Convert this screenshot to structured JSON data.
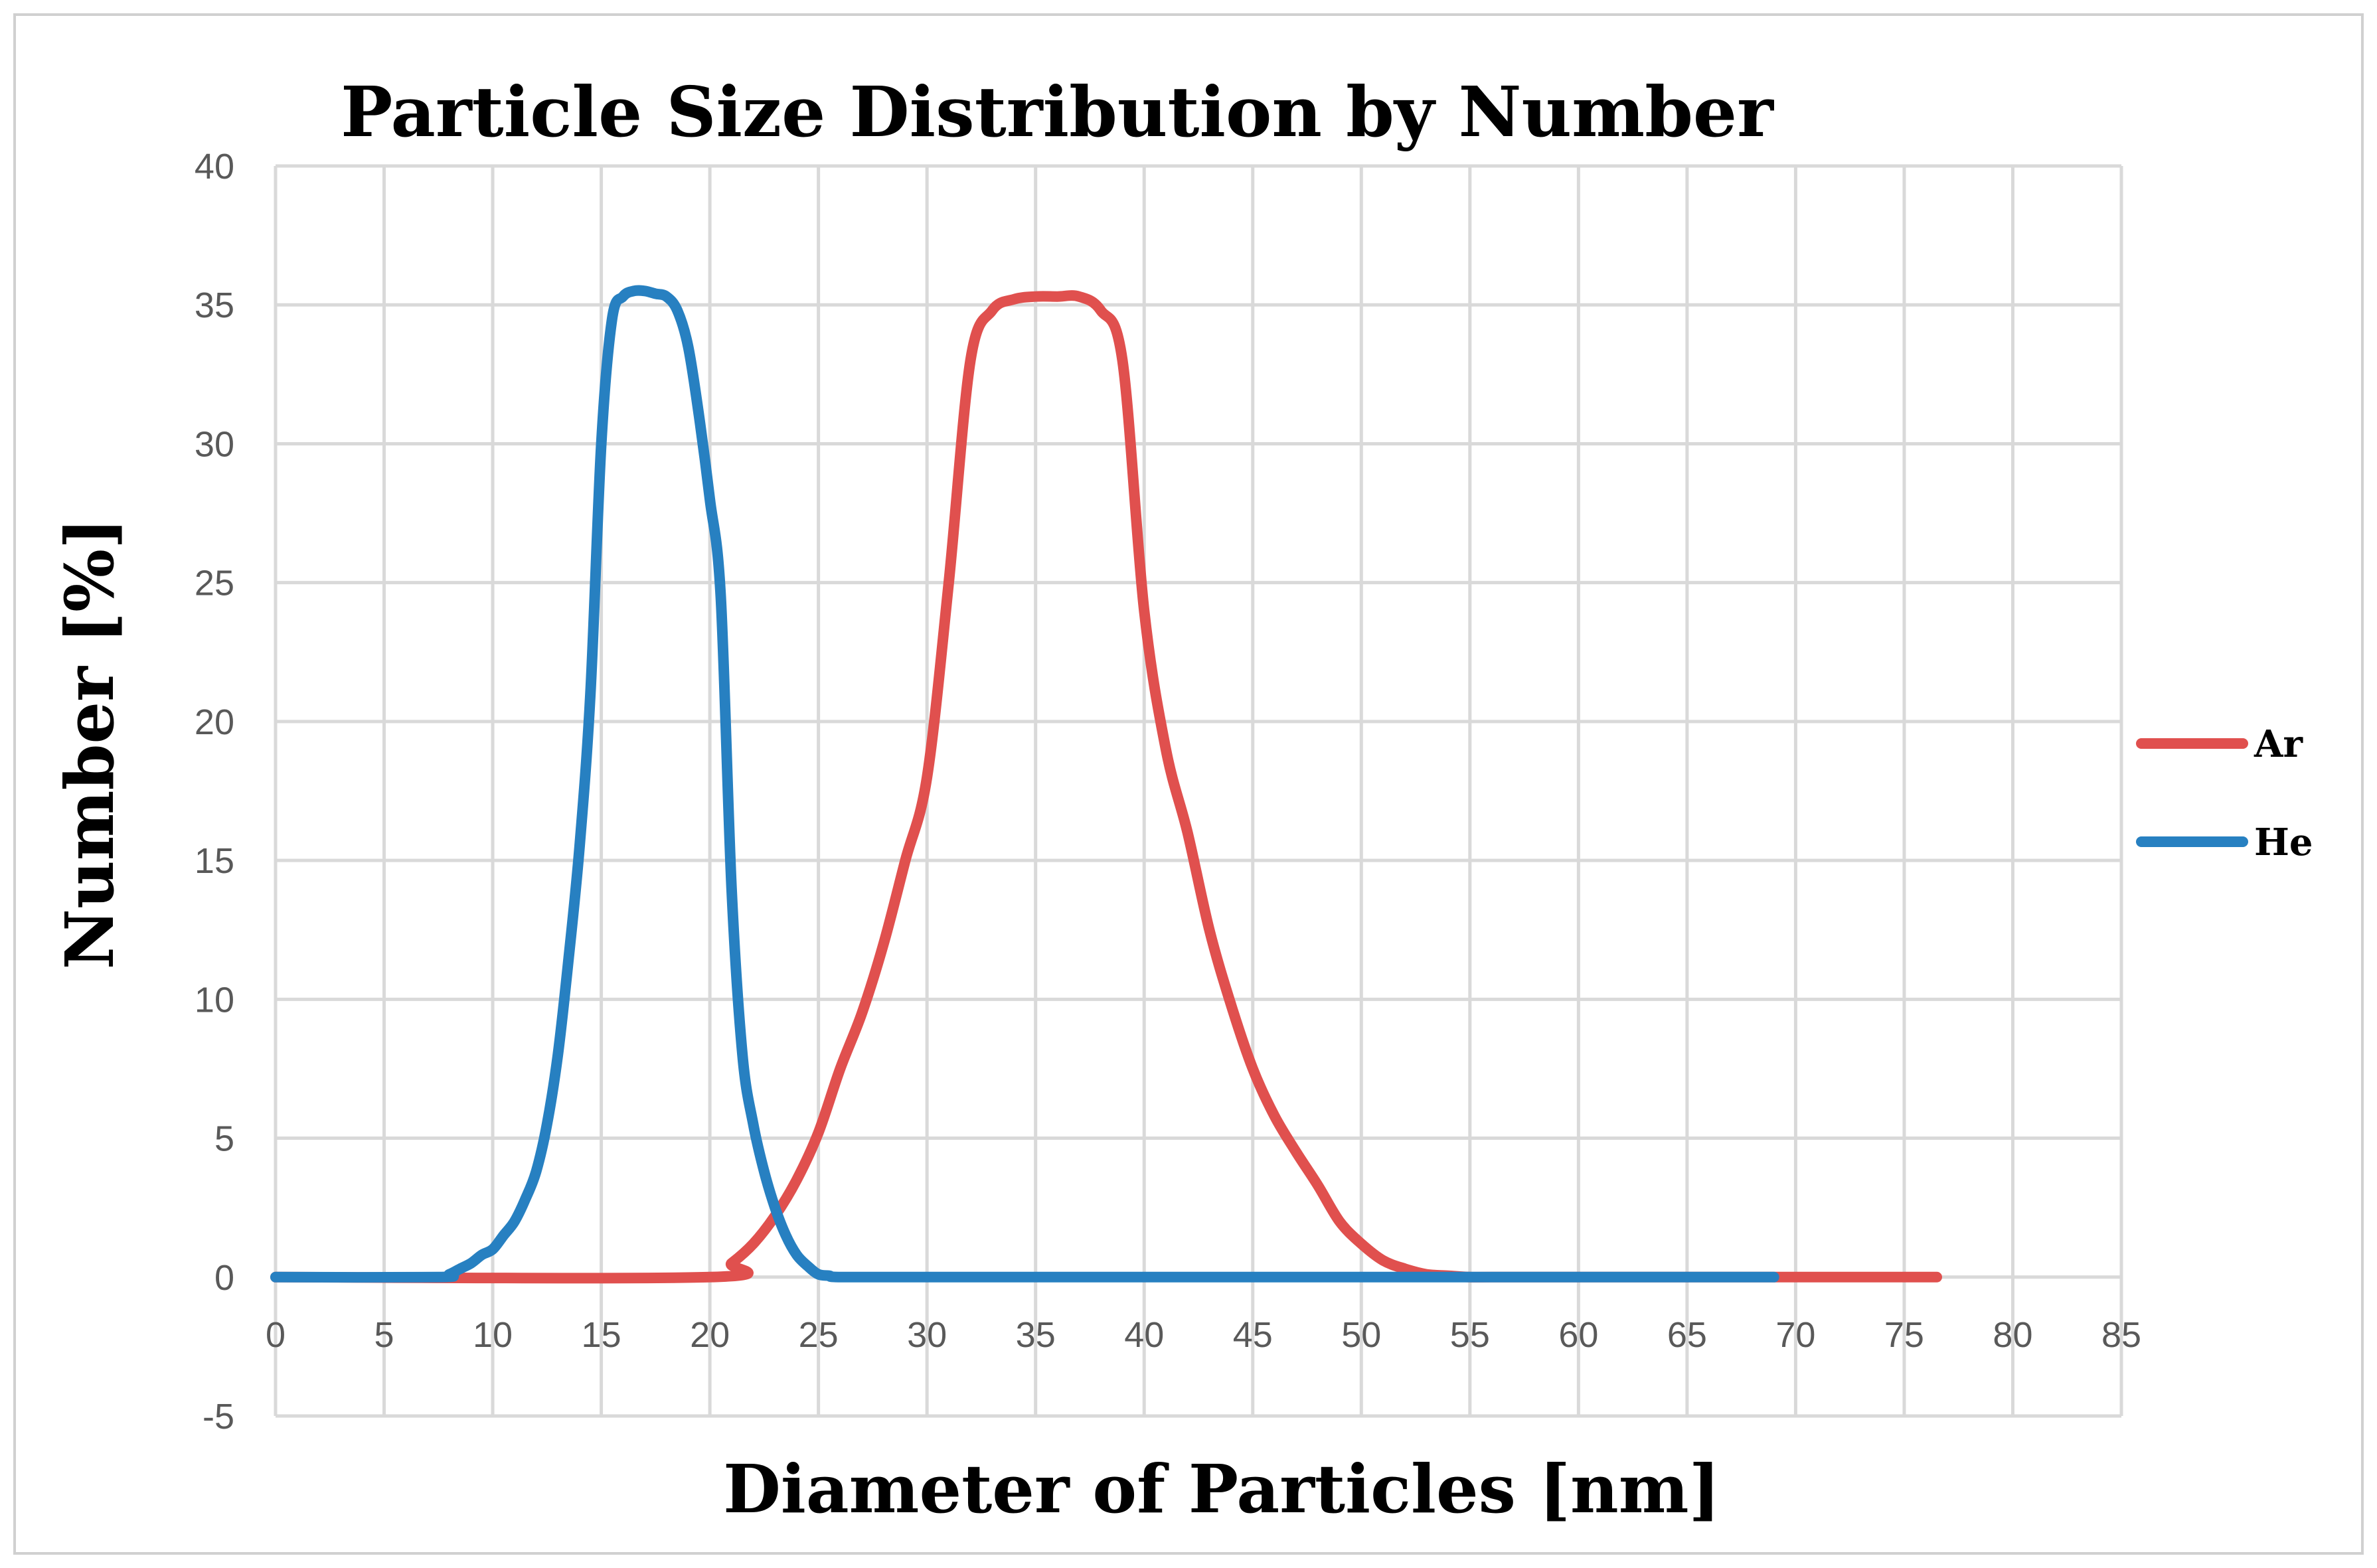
{
  "chart_data": {
    "type": "line",
    "title": "Particle Size Distribution by Number",
    "xlabel": "Diameter of Particles [nm]",
    "ylabel": "Number [%]",
    "xlim": [
      0,
      85
    ],
    "ylim": [
      -5,
      40
    ],
    "x_ticks": [
      0,
      5,
      10,
      15,
      20,
      25,
      30,
      35,
      40,
      45,
      50,
      55,
      60,
      65,
      70,
      75,
      80,
      85
    ],
    "y_ticks": [
      -5,
      0,
      5,
      10,
      15,
      20,
      25,
      30,
      35,
      40
    ],
    "grid": true,
    "legend": "right",
    "series": [
      {
        "name": "Ar",
        "color": "#E0504E",
        "x": [
          0,
          20,
          21,
          22,
          23,
          24,
          25,
          26,
          27,
          28,
          29,
          30,
          31,
          32,
          33,
          34,
          35,
          36,
          37,
          38,
          39,
          40,
          41,
          42,
          43,
          44,
          45,
          46,
          47,
          48,
          49,
          50,
          51,
          52,
          53,
          54,
          55,
          56,
          60,
          70,
          76.5
        ],
        "y": [
          0,
          0,
          0.5,
          1.2,
          2.2,
          3.5,
          5.2,
          7.5,
          9.5,
          12,
          15,
          18,
          25,
          33,
          34.8,
          35.2,
          35.3,
          35.3,
          35.3,
          34.8,
          33,
          24,
          19,
          16,
          12.5,
          9.8,
          7.5,
          5.8,
          4.5,
          3.3,
          2.0,
          1.2,
          0.6,
          0.3,
          0.1,
          0.05,
          0,
          0,
          0,
          0,
          0
        ]
      },
      {
        "name": "He",
        "color": "#2780C1",
        "x": [
          0,
          7.5,
          8,
          8.5,
          9,
          9.5,
          10,
          10.5,
          11,
          11.5,
          12,
          12.5,
          13,
          13.5,
          14,
          14.5,
          15,
          15.5,
          16,
          16.5,
          17,
          17.5,
          18,
          18.5,
          19,
          19.5,
          20,
          20.5,
          21,
          21.5,
          22,
          22.5,
          23,
          23.5,
          24,
          24.5,
          25,
          25.5,
          26,
          30,
          40,
          50,
          60,
          69
        ],
        "y": [
          0,
          0,
          0.1,
          0.3,
          0.5,
          0.8,
          1.0,
          1.5,
          2.0,
          2.8,
          3.8,
          5.5,
          8.0,
          11.5,
          15.5,
          21.0,
          30.0,
          34.5,
          35.3,
          35.5,
          35.5,
          35.4,
          35.3,
          34.8,
          33.5,
          31.0,
          28.0,
          24.5,
          14.0,
          8.0,
          5.5,
          3.8,
          2.5,
          1.5,
          0.8,
          0.4,
          0.1,
          0.05,
          0,
          0,
          0,
          0,
          0,
          0
        ]
      }
    ]
  }
}
